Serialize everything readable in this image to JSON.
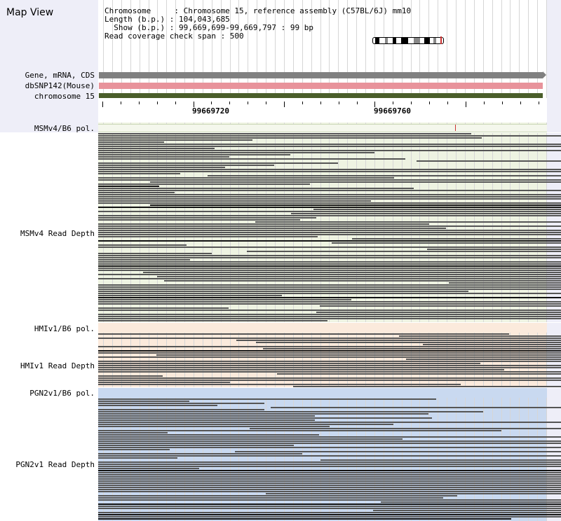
{
  "app": {
    "title": "Map View"
  },
  "info": {
    "line1": "Chromosome     : Chromosome 15, reference assembly (C57BL/6J) mm10",
    "line2": "Length (b.p.) : 104,043,685",
    "line3": "  Show (b.p.) : 99,669,699-99,669,797 : 99 bp",
    "line4": "Read coverage check span : 500"
  },
  "tracks": {
    "gene": {
      "label": "Gene, mRNA, CDS",
      "color": "#808080"
    },
    "dbsnp": {
      "label": "dbSNP142(Mouse)",
      "color": "#e8939b"
    },
    "chrom": {
      "label": "chromosome 15",
      "color": "#4a5e2a"
    }
  },
  "ruler": {
    "ticks": [
      "99669720",
      "99669760"
    ]
  },
  "panels": {
    "msm_pol": {
      "label": "MSMv4/B6 pol.",
      "bg": "#eef3e2"
    },
    "msm_depth": {
      "label": "MSMv4 Read Depth",
      "bg": "#eef3e2"
    },
    "hmi_pol": {
      "label": "HMIv1/B6 pol.",
      "bg": "#fbeadc"
    },
    "hmi_depth": {
      "label": "HMIv1 Read Depth",
      "bg": "#fbeadc"
    },
    "pgn_pol": {
      "label": "PGN2v1/B6 pol.",
      "bg": "#c9d9f0"
    },
    "pgn_depth": {
      "label": "PGN2v1 Read Depth",
      "bg": "#c9d9f0"
    }
  },
  "colors": {
    "read": "#555555",
    "left_panel": "#eeeef8",
    "snp_marker": "#cc3333"
  }
}
